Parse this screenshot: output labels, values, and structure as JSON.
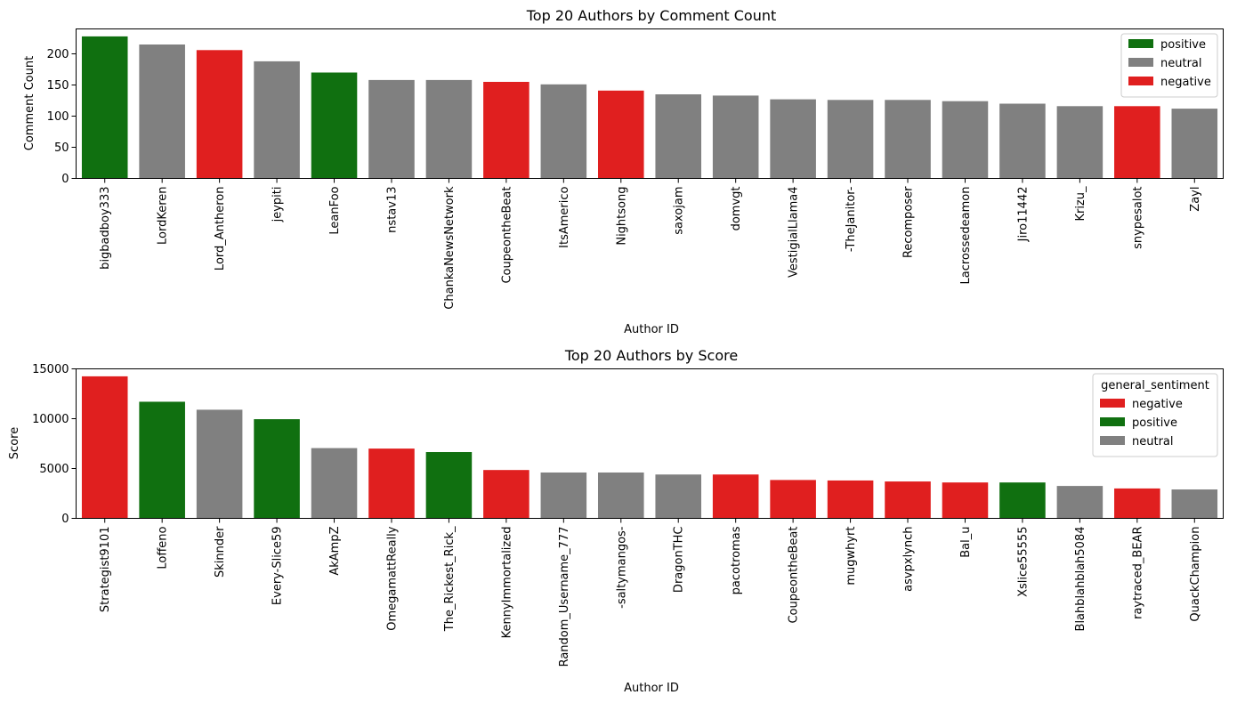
{
  "colors": {
    "positive": "#107010",
    "neutral": "#808080",
    "negative": "#e01f1f"
  },
  "chart_data": [
    {
      "type": "bar",
      "title": "Top 20 Authors by Comment Count",
      "xlabel": "Author ID",
      "ylabel": "Comment Count",
      "ylim": [
        0,
        240
      ],
      "yticks": [
        0,
        50,
        100,
        150,
        200
      ],
      "ytick_labels": [
        "0",
        "50",
        "100",
        "150",
        "200"
      ],
      "legend_title": "",
      "legend_order": [
        "positive",
        "neutral",
        "negative"
      ],
      "legend_placement": "top-right",
      "grid": false,
      "categories": [
        "bigbadboy333",
        "LordKeren",
        "Lord_Antheron",
        "jeypiti",
        "LeanFoo",
        "nstav13",
        "ChankaNewsNetwork",
        "CoupeontheBeat",
        "ItsAmerico",
        "Nightsong",
        "saxojam",
        "domvgt",
        "VestigialLlama4",
        "-TheJanitor-",
        "Recomposer",
        "Lacrossedeamon",
        "Jiro11442",
        "Krizu_",
        "snypesalot",
        "Zayl"
      ],
      "values": [
        228,
        215,
        206,
        188,
        170,
        158,
        158,
        155,
        151,
        141,
        135,
        133,
        127,
        126,
        126,
        124,
        120,
        116,
        116,
        112
      ],
      "sentiment": [
        "positive",
        "neutral",
        "negative",
        "neutral",
        "positive",
        "neutral",
        "neutral",
        "negative",
        "neutral",
        "negative",
        "neutral",
        "neutral",
        "neutral",
        "neutral",
        "neutral",
        "neutral",
        "neutral",
        "neutral",
        "negative",
        "neutral"
      ]
    },
    {
      "type": "bar",
      "title": "Top 20 Authors by Score",
      "xlabel": "Author ID",
      "ylabel": "Score",
      "ylim": [
        0,
        15000
      ],
      "yticks": [
        0,
        5000,
        10000,
        15000
      ],
      "ytick_labels": [
        "0",
        "5000",
        "10000",
        "15000"
      ],
      "legend_title": "general_sentiment",
      "legend_order": [
        "negative",
        "positive",
        "neutral"
      ],
      "legend_placement": "top-right",
      "grid": false,
      "categories": [
        "Strategist9101",
        "Loffeno",
        "Skinnder",
        "Every-Slice59",
        "AkAmpZ",
        "OmegamattReally",
        "The_Rickest_Rick_",
        "KennyImmortalized",
        "Random_Username_777",
        "-saltymangos-",
        "DragonTHC",
        "pacotromas",
        "CoupeontheBeat",
        "mugwhyrt",
        "asvpxlynch",
        "Bal_u",
        "Xslice55555",
        "Blahblahblah5084",
        "raytraced_BEAR",
        "QuackChampion"
      ],
      "values": [
        14250,
        11700,
        10900,
        9950,
        7050,
        7000,
        6650,
        4850,
        4600,
        4600,
        4400,
        4400,
        3850,
        3800,
        3700,
        3600,
        3600,
        3250,
        3000,
        2900
      ],
      "sentiment": [
        "negative",
        "positive",
        "neutral",
        "positive",
        "neutral",
        "negative",
        "positive",
        "negative",
        "neutral",
        "neutral",
        "neutral",
        "negative",
        "negative",
        "negative",
        "negative",
        "negative",
        "positive",
        "neutral",
        "negative",
        "neutral"
      ]
    }
  ]
}
